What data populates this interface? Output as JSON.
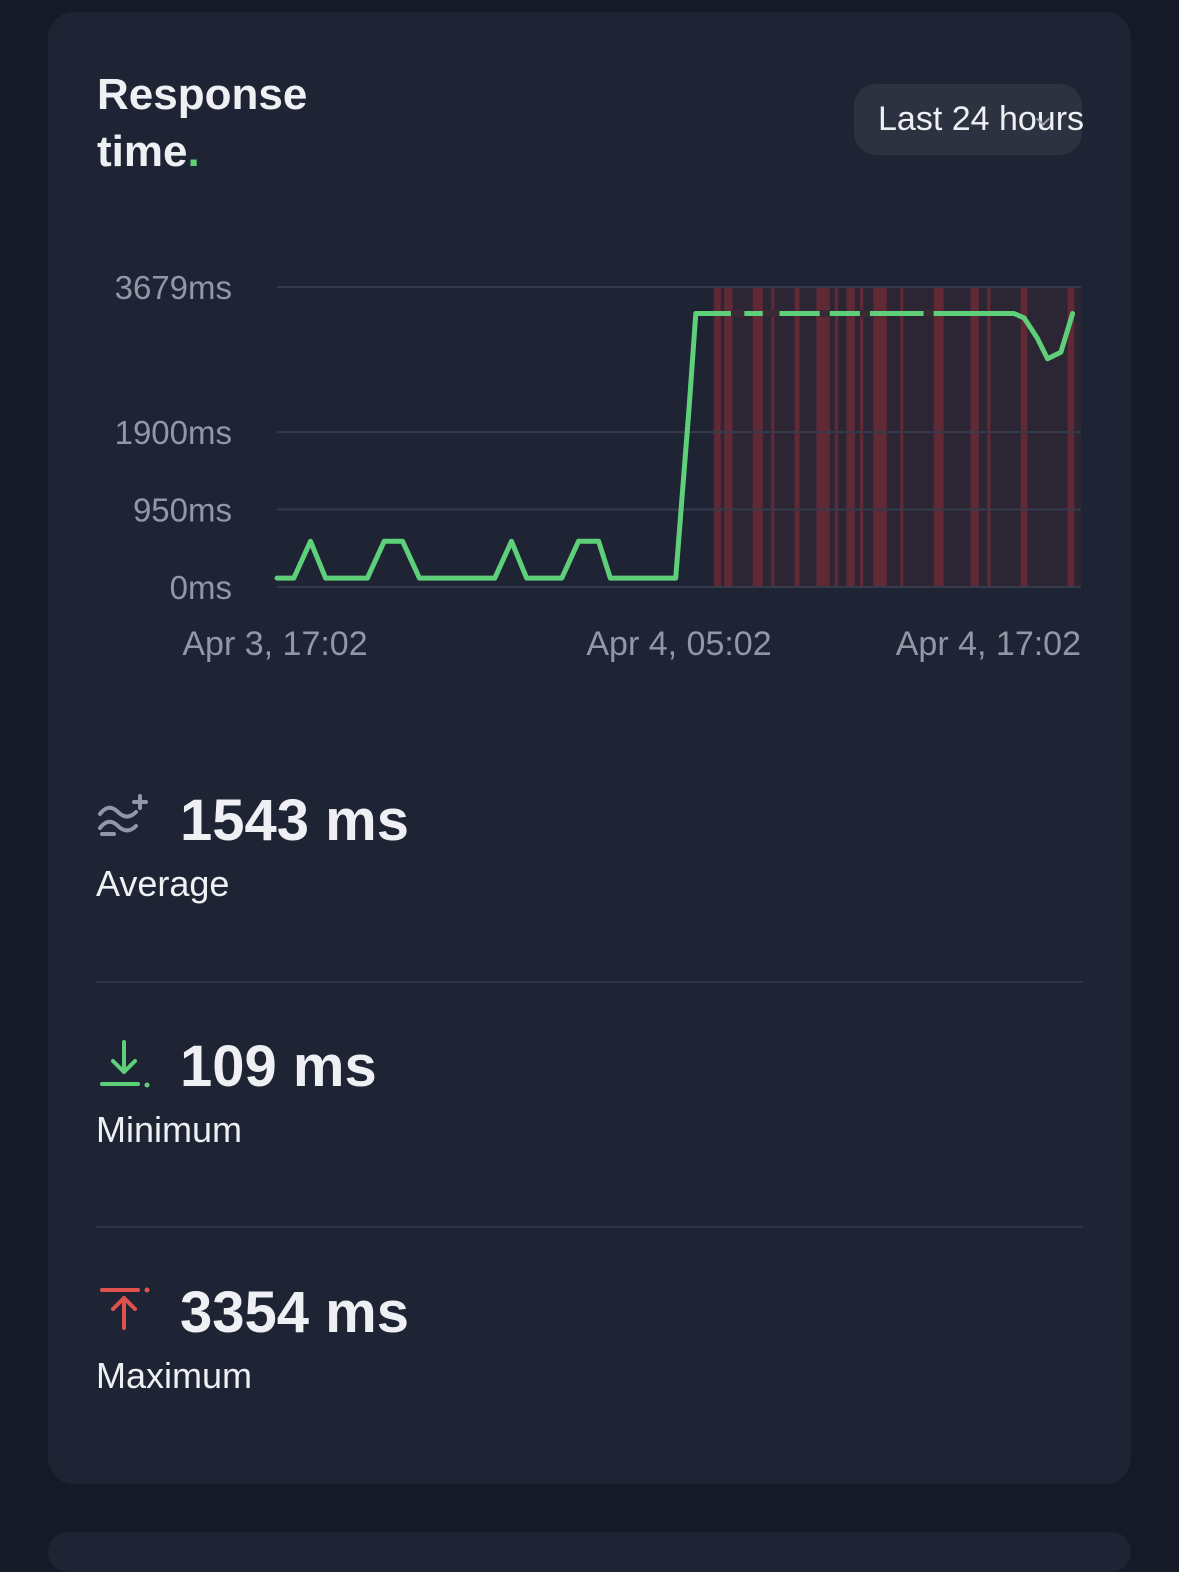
{
  "card": {
    "title_main": "Response time",
    "title_dot": ".",
    "range_selector": {
      "label": "Last 24 hours",
      "icon": "chevron-down-icon"
    }
  },
  "colors": {
    "line": "#5fd07a",
    "incident": "#8b2e36",
    "grid": "#363b4b",
    "axis_text": "#9098a8",
    "text": "#eef0f4",
    "min_icon": "#5fd07a",
    "max_icon": "#e0524d",
    "avg_icon": "#8f97a8"
  },
  "chart_data": {
    "type": "line",
    "title": "Response time.",
    "y_ticks": [
      {
        "label": "3679ms",
        "value": 3679
      },
      {
        "label": "1900ms",
        "value": 1900
      },
      {
        "label": "950ms",
        "value": 950
      },
      {
        "label": "0ms",
        "value": 0
      }
    ],
    "ylim": [
      0,
      3679
    ],
    "x_ticks": [
      {
        "label": "Apr 3, 17:02",
        "hour": 0
      },
      {
        "label": "Apr 4, 05:02",
        "hour": 12
      },
      {
        "label": "Apr 4, 17:02",
        "hour": 24
      }
    ],
    "xlim_hours": [
      0,
      24
    ],
    "series": [
      {
        "points": [
          [
            0.0,
            109
          ],
          [
            0.5,
            109
          ],
          [
            1.0,
            560
          ],
          [
            1.45,
            109
          ],
          [
            2.7,
            109
          ],
          [
            3.2,
            560
          ],
          [
            3.75,
            560
          ],
          [
            4.25,
            109
          ],
          [
            6.2,
            109
          ],
          [
            6.5,
            109
          ],
          [
            7.0,
            560
          ],
          [
            7.45,
            109
          ],
          [
            8.2,
            109
          ],
          [
            8.5,
            109
          ],
          [
            9.0,
            560
          ],
          [
            9.6,
            560
          ],
          [
            9.95,
            109
          ],
          [
            11.6,
            109
          ],
          [
            11.9,
            109
          ],
          [
            12.3,
            2200
          ],
          [
            12.5,
            3354
          ],
          [
            13.0,
            3354
          ],
          [
            22.0,
            3354
          ],
          [
            22.3,
            3300
          ],
          [
            22.7,
            3050
          ],
          [
            23.0,
            2800
          ],
          [
            23.4,
            2880
          ],
          [
            23.75,
            3354
          ]
        ],
        "gaps_hours": [
          [
            13.55,
            13.95
          ],
          [
            14.5,
            15.0
          ],
          [
            16.2,
            16.5
          ],
          [
            17.4,
            17.7
          ],
          [
            19.3,
            19.6
          ]
        ]
      }
    ],
    "incident_bands_hours": [
      [
        13.05,
        13.25
      ],
      [
        13.35,
        13.6
      ],
      [
        14.2,
        14.5
      ],
      [
        14.75,
        14.85
      ],
      [
        15.45,
        15.6
      ],
      [
        16.1,
        16.5
      ],
      [
        16.65,
        16.75
      ],
      [
        17.0,
        17.25
      ],
      [
        17.4,
        17.5
      ],
      [
        17.8,
        18.2
      ],
      [
        18.6,
        18.7
      ],
      [
        19.6,
        19.9
      ],
      [
        20.7,
        20.95
      ],
      [
        21.2,
        21.3
      ],
      [
        22.2,
        22.4
      ],
      [
        23.6,
        23.8
      ]
    ],
    "grid": true
  },
  "stats": {
    "average": {
      "value": "1543 ms",
      "label": "Average",
      "icon": "average-wave-icon"
    },
    "minimum": {
      "value": "109 ms",
      "label": "Minimum",
      "icon": "arrow-down-to-line-icon"
    },
    "maximum": {
      "value": "3354 ms",
      "label": "Maximum",
      "icon": "arrow-up-from-line-icon"
    }
  }
}
